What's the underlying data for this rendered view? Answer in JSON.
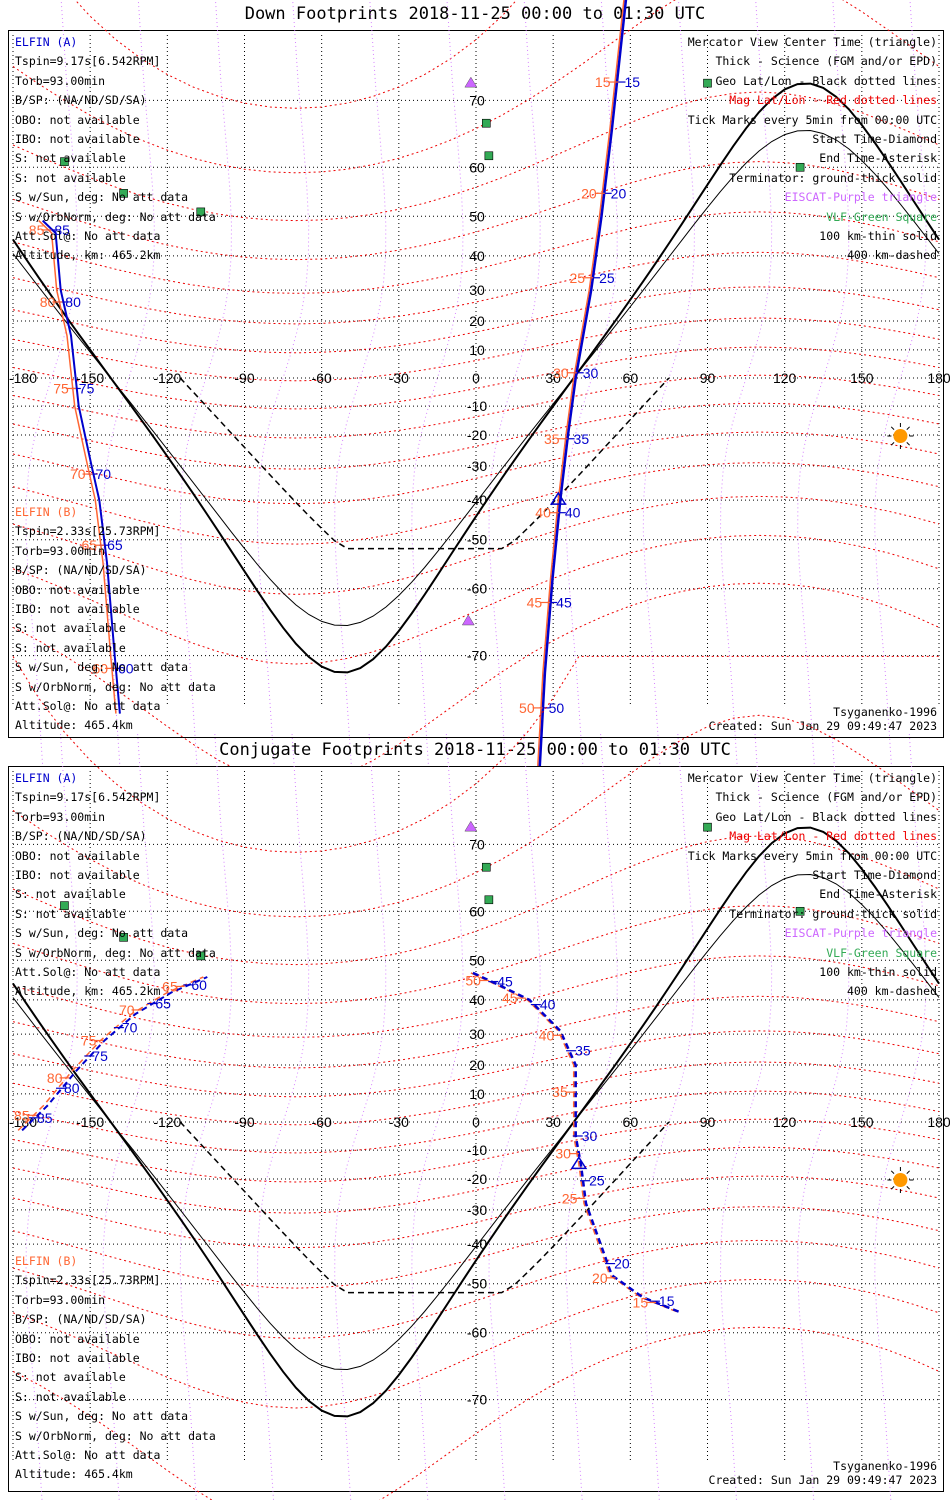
{
  "colors": {
    "sat_a": "#0000cc",
    "sat_b": "#ff6633",
    "mag_grid": "#ee0000",
    "geo_grid": "#000000",
    "eiscat": "#cc66ff",
    "vlf": "#33aa55",
    "sun": "#ff9900",
    "coast": "#bbbbbb"
  },
  "axis": {
    "lon_ticks": [
      "-180",
      "-150",
      "-120",
      "-90",
      "-60",
      "-30",
      "0",
      "30",
      "60",
      "90",
      "120",
      "150",
      "180"
    ],
    "lat_ticks": [
      "70",
      "60",
      "50",
      "40",
      "30",
      "20",
      "10",
      "-10",
      "-20",
      "-30",
      "-40",
      "-50",
      "-60",
      "-70"
    ]
  },
  "legend": {
    "view": "Mercator View Center Time (triangle)",
    "thick": "Thick - Science (FGM and/or EPD)",
    "geo": "Geo Lat/Lon - Black dotted lines",
    "mag": "Mag Lat/Lon - Red dotted lines",
    "ticks": "Tick Marks every 5min from 00:00 UTC",
    "start": "Start Time-Diamond",
    "end": "End Time-Asterisk",
    "terminator": "Terminator: ground-thick solid",
    "eiscat": "EISCAT-Purple triangle",
    "vlf": "VLF-Green Square",
    "thin": "100 km-thin solid",
    "dashed": "400 km-dashed"
  },
  "sat_a": {
    "name": "ELFIN (A)",
    "lines": [
      "Tspin=9.17s[6.542RPM]",
      "Torb=93.00min",
      "B/SP: (NA/ND/SD/SA)",
      "OBO: not available",
      "IBO: not available",
      "S: not available",
      "S: not available",
      "S w/Sun, deg: No att data",
      "S w/OrbNorm, deg: No att data",
      "Att.Sol@: No att data",
      "Altitude, km: 465.2km"
    ]
  },
  "sat_b": {
    "name": "ELFIN (B)",
    "lines": [
      "Tspin=2.33s[25.73RPM]",
      "Torb=93.00min",
      "B/SP: (NA/ND/SD/SA)",
      "OBO: not available",
      "IBO: not available",
      "S: not available",
      "S: not available",
      "S w/Sun, deg: No att data",
      "S w/OrbNorm, deg: No att data",
      "Att.Sol@: No att data",
      "Altitude: 465.4km"
    ]
  },
  "model": "Tsyganenko-1996",
  "created": "Created: Sun Jan 29 09:49:47 2023",
  "panels": [
    {
      "title": "Down Footprints 2018-11-25 00:00 to 01:30 UTC",
      "track_a": [
        [
          -170,
          49
        ],
        [
          -165,
          46
        ],
        [
          -163,
          30
        ],
        [
          -159,
          15
        ],
        [
          -156,
          -10
        ],
        [
          -151,
          -30
        ],
        [
          -148,
          -40
        ],
        [
          -145,
          -55
        ],
        [
          -142,
          -70
        ],
        [
          -140,
          -76
        ]
      ],
      "track_a_labels": [
        "85",
        "80",
        "75",
        "70",
        "65",
        "60"
      ],
      "track_b_labels": [
        "85",
        "80",
        "75",
        "70",
        "65",
        "60"
      ],
      "track_a2": [
        [
          58,
          80
        ],
        [
          52,
          66
        ],
        [
          48,
          50
        ],
        [
          44,
          30
        ],
        [
          38,
          0
        ],
        [
          35,
          -20
        ],
        [
          32,
          -40
        ],
        [
          29,
          -58
        ],
        [
          26,
          -72
        ],
        [
          24,
          -80
        ]
      ],
      "track_a2_labels": [
        "15",
        "20",
        "25",
        "30",
        "35",
        "40",
        "45",
        "50"
      ],
      "track_b2_labels": [
        "15",
        "20",
        "25",
        "30",
        "35",
        "40",
        "45",
        "50"
      ]
    },
    {
      "title": "Conjugate Footprints 2018-11-25 00:00 to 01:30 UTC",
      "track_a": [
        [
          -178,
          -3
        ],
        [
          -168,
          6
        ],
        [
          -157,
          18
        ],
        [
          -146,
          28
        ],
        [
          -134,
          36
        ],
        [
          -120,
          42
        ],
        [
          -106,
          46
        ]
      ],
      "track_a_labels": [
        "85",
        "80",
        "75",
        "70",
        "65",
        "60"
      ],
      "track_b_labels": [
        "85",
        "80",
        "75",
        "70",
        "65"
      ],
      "track_a2": [
        [
          -2,
          47
        ],
        [
          8,
          44
        ],
        [
          20,
          40
        ],
        [
          32,
          31
        ],
        [
          38,
          20
        ],
        [
          38,
          -5
        ],
        [
          40,
          -15
        ],
        [
          42,
          -28
        ],
        [
          52,
          -48
        ],
        [
          64,
          -53
        ],
        [
          78,
          -56
        ]
      ],
      "track_a2_labels": [
        "45",
        "40",
        "35",
        "30",
        "25",
        "20",
        "15"
      ],
      "track_b2_labels": [
        "50",
        "45",
        "40",
        "35",
        "30",
        "25",
        "20",
        "15"
      ]
    }
  ]
}
